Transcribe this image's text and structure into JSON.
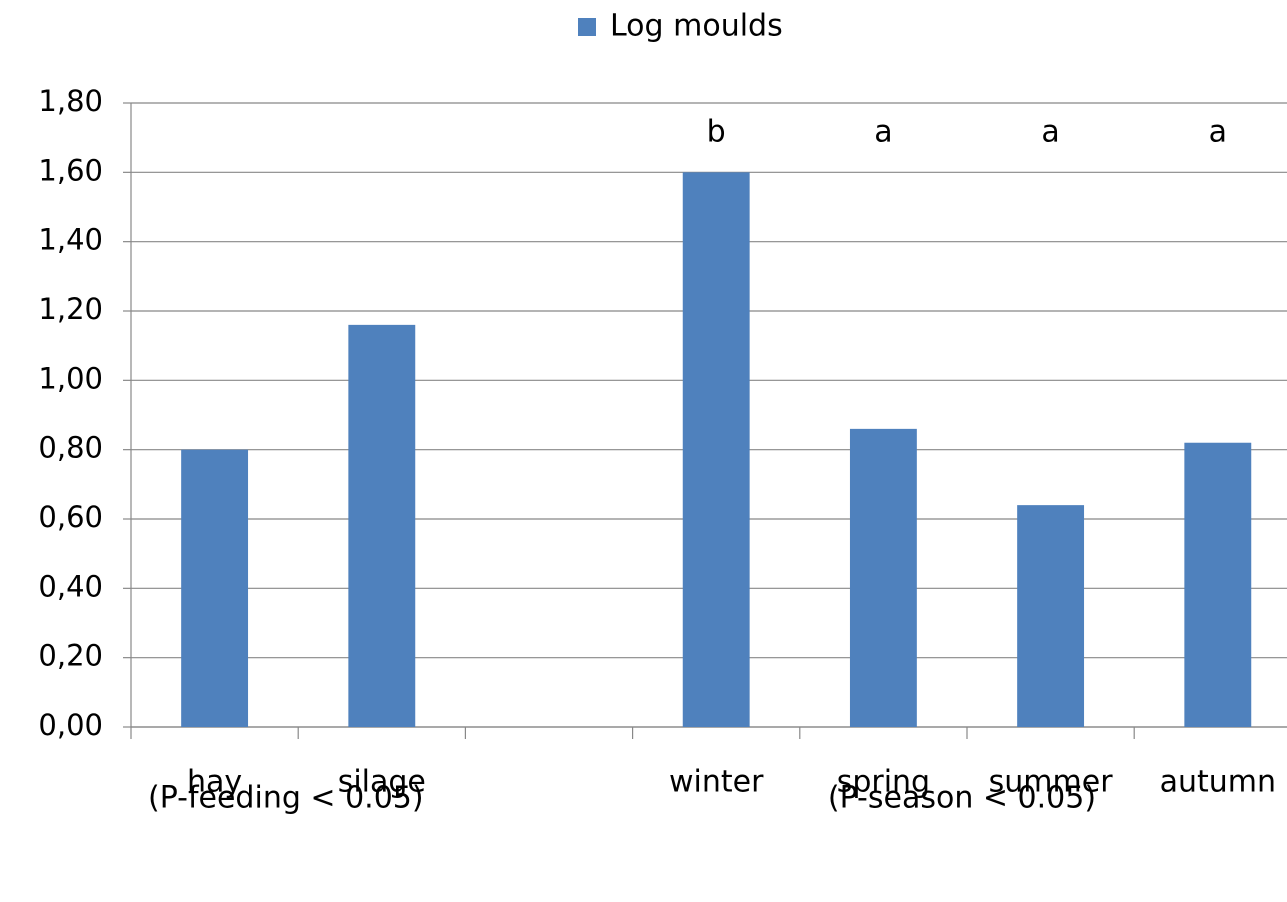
{
  "chart_data": {
    "type": "bar",
    "legend": "Log moulds",
    "categories": [
      "hay",
      "silage",
      null,
      "winter",
      "spring",
      "summer",
      "autumn"
    ],
    "series": [
      {
        "name": "Log moulds",
        "color": "#4f81bd",
        "values": [
          0.8,
          1.16,
          null,
          1.6,
          0.86,
          0.64,
          0.82
        ]
      }
    ],
    "letters": [
      null,
      null,
      null,
      "b",
      "a",
      "a",
      "a"
    ],
    "notes": [
      "(P-feeding < 0.05)",
      "(P-season < 0.05)"
    ],
    "ylim": [
      0,
      1.8
    ],
    "yticks": [
      {
        "value": 0,
        "label": "0,00"
      },
      {
        "value": 0.2,
        "label": "0,20"
      },
      {
        "value": 0.4,
        "label": "0,40"
      },
      {
        "value": 0.6,
        "label": "0,60"
      },
      {
        "value": 0.8,
        "label": "0,80"
      },
      {
        "value": 1.0,
        "label": "1,00"
      },
      {
        "value": 1.2,
        "label": "1,20"
      },
      {
        "value": 1.4,
        "label": "1,40"
      },
      {
        "value": 1.6,
        "label": "1,60"
      },
      {
        "value": 1.8,
        "label": "1,80"
      }
    ],
    "grid": true
  }
}
